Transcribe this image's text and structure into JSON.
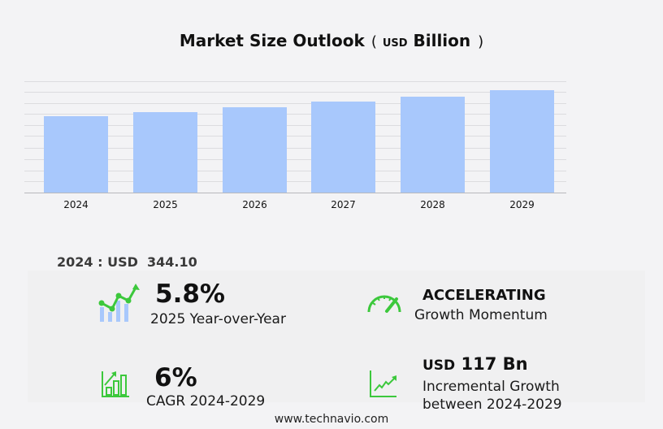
{
  "title": {
    "main": "Market Size Outlook",
    "open_paren": "(",
    "unit_small": "USD",
    "unit_big": "Billion",
    "close_paren": ")"
  },
  "chart_data": {
    "type": "bar",
    "title": "Market Size Outlook (USD Billion)",
    "categories": [
      "2024",
      "2025",
      "2026",
      "2027",
      "2028",
      "2029"
    ],
    "values": [
      344.1,
      364.1,
      385.5,
      408.6,
      433.6,
      461.1
    ],
    "xlabel": "",
    "ylabel": "USD Billion",
    "ylim": [
      0,
      520
    ],
    "grid": true,
    "y_tick_labels_shown": false,
    "bar_color": "#a8c8fc",
    "legend": null
  },
  "base_value": {
    "text": "2024 : USD  344.10"
  },
  "kpis": {
    "yoy": {
      "value": "5.8%",
      "label": "2025 Year-over-Year",
      "icon": "growth-chart-icon"
    },
    "momentum": {
      "value": "ACCELERATING",
      "label": "Growth Momentum",
      "icon": "speedometer-icon"
    },
    "cagr": {
      "value": "6%",
      "label": "CAGR 2024-2029",
      "icon": "bar-growth-icon"
    },
    "incremental": {
      "value_unit": "USD",
      "value": "117 Bn",
      "label_line1": "Incremental Growth",
      "label_line2": "between 2024-2029",
      "icon": "trend-line-icon"
    }
  },
  "colors": {
    "bar": "#a8c8fc",
    "accent_green": "#3cc83c",
    "icon_blue": "#a8c8fc"
  },
  "footer": {
    "url": "www.technavio.com"
  }
}
